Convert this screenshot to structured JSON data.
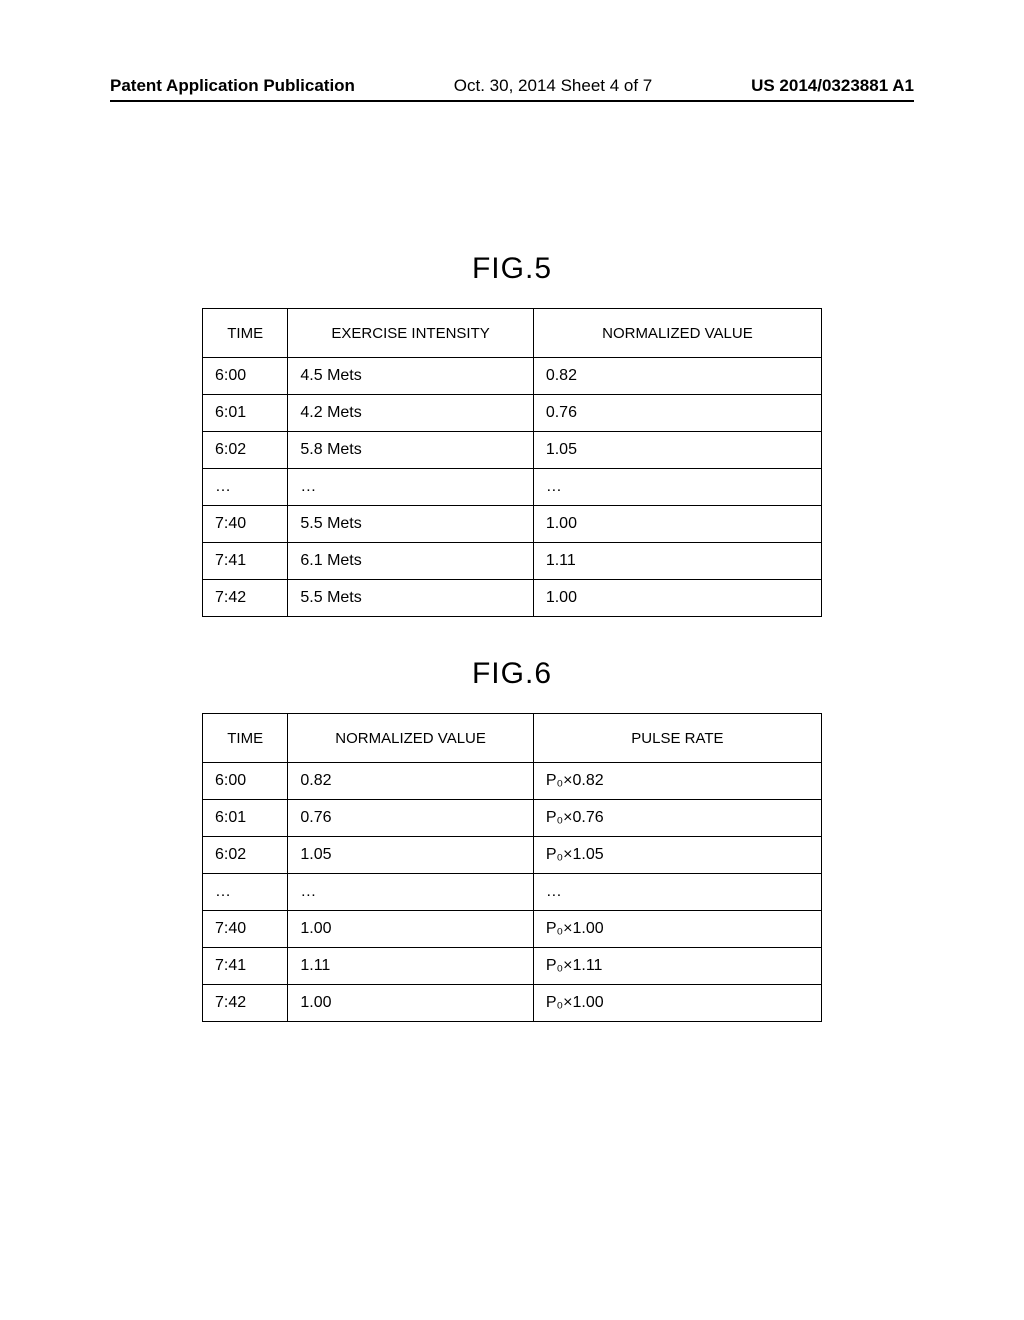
{
  "header": {
    "left": "Patent Application Publication",
    "center": "Oct. 30, 2014  Sheet 4 of 7",
    "right": "US 2014/0323881 A1"
  },
  "fig5": {
    "label": "FIG.5",
    "columns": [
      "TIME",
      "EXERCISE INTENSITY",
      "NORMALIZED VALUE"
    ],
    "rows": [
      [
        "6:00",
        "4.5 Mets",
        "0.82"
      ],
      [
        "6:01",
        "4.2 Mets",
        "0.76"
      ],
      [
        "6:02",
        "5.8 Mets",
        "1.05"
      ],
      [
        "…",
        "…",
        "…"
      ],
      [
        "7:40",
        "5.5 Mets",
        "1.00"
      ],
      [
        "7:41",
        "6.1 Mets",
        "1.11"
      ],
      [
        "7:42",
        "5.5 Mets",
        "1.00"
      ]
    ]
  },
  "fig6": {
    "label": "FIG.6",
    "columns": [
      "TIME",
      "NORMALIZED VALUE",
      "PULSE RATE"
    ],
    "rows": [
      [
        "6:00",
        "0.82",
        "P₀×0.82"
      ],
      [
        "6:01",
        "0.76",
        "P₀×0.76"
      ],
      [
        "6:02",
        "1.05",
        "P₀×1.05"
      ],
      [
        "…",
        "…",
        "…"
      ],
      [
        "7:40",
        "1.00",
        "P₀×1.00"
      ],
      [
        "7:41",
        "1.11",
        "P₀×1.11"
      ],
      [
        "7:42",
        "1.00",
        "P₀×1.00"
      ]
    ]
  }
}
